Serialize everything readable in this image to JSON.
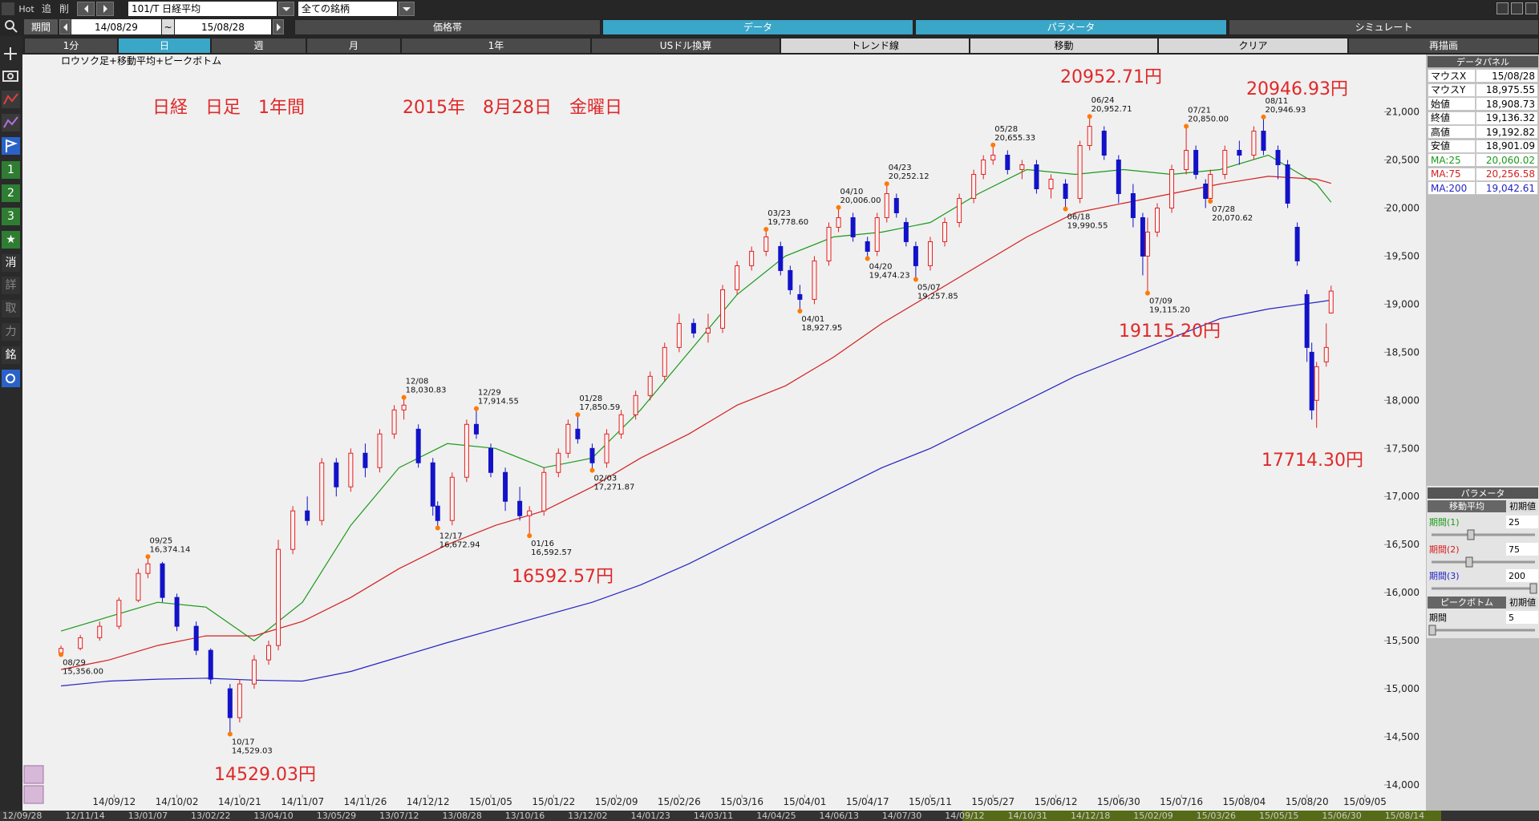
{
  "toolbar": {
    "hot": "Hot",
    "buttons": [
      "追",
      "削"
    ],
    "symbol": "101/T 日経平均",
    "universe": "全ての銘柄"
  },
  "period": {
    "label": "期間",
    "from": "14/08/29",
    "sep": "~",
    "to": "15/08/28"
  },
  "tabs": [
    "価格帯",
    "データ",
    "パラメータ",
    "シミュレート"
  ],
  "active_tabs": [
    1,
    2
  ],
  "buttons": [
    "1分",
    "日",
    "週",
    "月",
    "1年",
    "USドル換算",
    "トレンド線",
    "移動",
    "クリア",
    "再描画"
  ],
  "active_button": 1,
  "side_tools": [
    "1",
    "2",
    "3",
    "★",
    "消",
    "詳",
    "取",
    "力",
    "銘"
  ],
  "chart_data": {
    "type": "candlestick",
    "title": "ロウソク足+移動平均+ピークボトム",
    "xlim": [
      -3,
      274
    ],
    "xticks": [
      {
        "value": 11,
        "label": "14/09/12"
      },
      {
        "value": 24,
        "label": "14/10/02"
      },
      {
        "value": 37,
        "label": "14/10/21"
      },
      {
        "value": 50,
        "label": "14/11/07"
      },
      {
        "value": 63,
        "label": "14/11/26"
      },
      {
        "value": 76,
        "label": "14/12/12"
      },
      {
        "value": 89,
        "label": "15/01/05"
      },
      {
        "value": 102,
        "label": "15/01/22"
      },
      {
        "value": 115,
        "label": "15/02/09"
      },
      {
        "value": 128,
        "label": "15/02/26"
      },
      {
        "value": 141,
        "label": "15/03/16"
      },
      {
        "value": 154,
        "label": "15/04/01"
      },
      {
        "value": 167,
        "label": "15/04/17"
      },
      {
        "value": 180,
        "label": "15/05/11"
      },
      {
        "value": 193,
        "label": "15/05/27"
      },
      {
        "value": 206,
        "label": "15/06/12"
      },
      {
        "value": 219,
        "label": "15/06/30"
      },
      {
        "value": 232,
        "label": "15/07/16"
      },
      {
        "value": 245,
        "label": "15/08/04"
      },
      {
        "value": 258,
        "label": "15/08/20"
      },
      {
        "value": 270,
        "label": "15/09/05"
      }
    ],
    "ylim": [
      13900,
      21580
    ],
    "yticks": [
      {
        "value": 14000,
        "label": "14,000"
      },
      {
        "value": 14500,
        "label": "14,500"
      },
      {
        "value": 15000,
        "label": "15,000"
      },
      {
        "value": 15500,
        "label": "15,500"
      },
      {
        "value": 16000,
        "label": "16,000"
      },
      {
        "value": 16500,
        "label": "16,500"
      },
      {
        "value": 17000,
        "label": "17,000"
      },
      {
        "value": 17500,
        "label": "17,500"
      },
      {
        "value": 18000,
        "label": "18,000"
      },
      {
        "value": 18500,
        "label": "18,500"
      },
      {
        "value": 19000,
        "label": "19,000"
      },
      {
        "value": 19500,
        "label": "19,500"
      },
      {
        "value": 20000,
        "label": "20,000"
      },
      {
        "value": 20500,
        "label": "20,500"
      },
      {
        "value": 21000,
        "label": "21,000"
      }
    ],
    "candles": {
      "up_color": "#e02020",
      "down_color": "#1212c8",
      "x": [
        0,
        4,
        8,
        12,
        16,
        18,
        21,
        24,
        28,
        31,
        35,
        37,
        40,
        43,
        45,
        48,
        51,
        54,
        57,
        60,
        63,
        66,
        69,
        71,
        74,
        77,
        78,
        81,
        84,
        86,
        89,
        92,
        95,
        97,
        100,
        103,
        105,
        107,
        110,
        113,
        116,
        119,
        122,
        125,
        128,
        131,
        134,
        137,
        140,
        143,
        146,
        149,
        151,
        153,
        156,
        159,
        161,
        164,
        167,
        169,
        171,
        173,
        175,
        177,
        180,
        183,
        186,
        189,
        191,
        193,
        196,
        199,
        202,
        205,
        208,
        211,
        213,
        216,
        219,
        222,
        224,
        225,
        227,
        230,
        233,
        235,
        237,
        238,
        241,
        244,
        247,
        249,
        252,
        254,
        256,
        258,
        259,
        260,
        262,
        263
      ],
      "open": [
        15370,
        15420,
        15530,
        15650,
        15920,
        16200,
        16300,
        15950,
        15650,
        15400,
        15000,
        14700,
        15050,
        15300,
        15450,
        16450,
        16850,
        16750,
        17350,
        17100,
        17450,
        17300,
        17650,
        17900,
        17700,
        17350,
        16900,
        16750,
        17200,
        17750,
        17500,
        17250,
        16950,
        16800,
        16850,
        17250,
        17450,
        17700,
        17500,
        17350,
        17650,
        17850,
        18050,
        18250,
        18550,
        18800,
        18700,
        18750,
        19150,
        19400,
        19550,
        19600,
        19350,
        19100,
        19050,
        19450,
        19800,
        19900,
        19650,
        19550,
        19900,
        20100,
        19850,
        19600,
        19400,
        19650,
        19850,
        20100,
        20350,
        20500,
        20550,
        20400,
        20450,
        20200,
        20250,
        20100,
        20650,
        20800,
        20500,
        20150,
        19900,
        19500,
        19750,
        20000,
        20400,
        20600,
        20250,
        20100,
        20350,
        20600,
        20550,
        20800,
        20600,
        20450,
        19800,
        19100,
        18500,
        18000,
        18400,
        18908.73
      ],
      "high": [
        15450,
        15560,
        15700,
        15950,
        16250,
        16374.14,
        16320,
        15990,
        15700,
        15420,
        15050,
        15100,
        15350,
        15500,
        16550,
        16900,
        17000,
        17400,
        17400,
        17500,
        17550,
        17700,
        17950,
        18030.83,
        17750,
        17400,
        16950,
        17250,
        17800,
        17914.55,
        17550,
        17300,
        17100,
        16900,
        17300,
        17500,
        17800,
        17850.59,
        17550,
        17700,
        17900,
        18100,
        18300,
        18600,
        18900,
        18850,
        18900,
        19200,
        19450,
        19600,
        19778.6,
        19650,
        19400,
        19200,
        19500,
        19850,
        20006,
        19950,
        19700,
        19950,
        20252.12,
        20150,
        19900,
        19650,
        19700,
        19900,
        20150,
        20400,
        20550,
        20655.33,
        20600,
        20500,
        20500,
        20350,
        20300,
        20700,
        20952.71,
        20850,
        20550,
        20250,
        19950,
        19900,
        20050,
        20450,
        20850,
        20650,
        20300,
        20400,
        20650,
        20700,
        20850,
        20946.93,
        20650,
        20500,
        19850,
        19150,
        18600,
        18400,
        18800,
        19192.82
      ],
      "low": [
        15356,
        15400,
        15500,
        15620,
        15900,
        16150,
        15900,
        15600,
        15350,
        15050,
        14529.03,
        14650,
        15000,
        15250,
        15400,
        16400,
        16700,
        16700,
        17000,
        17050,
        17200,
        17250,
        17600,
        17800,
        17300,
        16800,
        16672.94,
        16700,
        17150,
        17600,
        17200,
        16850,
        16750,
        16592.57,
        16800,
        17200,
        17400,
        17550,
        17271.87,
        17300,
        17600,
        17800,
        18000,
        18200,
        18500,
        18650,
        18600,
        18700,
        19100,
        19350,
        19500,
        19300,
        19100,
        18927.95,
        19000,
        19400,
        19750,
        19650,
        19474.23,
        19500,
        19850,
        19900,
        19600,
        19257.85,
        19350,
        19600,
        19800,
        20050,
        20300,
        20450,
        20350,
        20300,
        20150,
        20100,
        19990.55,
        20050,
        20600,
        20500,
        20050,
        19800,
        19300,
        19115.2,
        19700,
        19950,
        20350,
        20300,
        20000,
        20070.62,
        20300,
        20450,
        20500,
        20550,
        20300,
        20000,
        19400,
        18400,
        17800,
        17714.3,
        18350,
        18901.09
      ],
      "close": [
        15420,
        15530,
        15650,
        15920,
        16200,
        16300,
        15950,
        15650,
        15400,
        15100,
        14700,
        15050,
        15300,
        15450,
        16450,
        16850,
        16750,
        17350,
        17100,
        17450,
        17300,
        17650,
        17900,
        17950,
        17350,
        16900,
        16750,
        17200,
        17750,
        17650,
        17250,
        16950,
        16800,
        16850,
        17250,
        17450,
        17750,
        17600,
        17350,
        17650,
        17850,
        18050,
        18250,
        18550,
        18800,
        18700,
        18750,
        19150,
        19400,
        19550,
        19700,
        19350,
        19150,
        19050,
        19450,
        19800,
        19900,
        19700,
        19550,
        19900,
        20150,
        19950,
        19650,
        19400,
        19650,
        19850,
        20100,
        20350,
        20500,
        20550,
        20400,
        20450,
        20200,
        20300,
        20100,
        20650,
        20850,
        20550,
        20150,
        19900,
        19500,
        19750,
        20000,
        20400,
        20600,
        20350,
        20100,
        20350,
        20600,
        20550,
        20800,
        20600,
        20450,
        20050,
        19450,
        18550,
        17900,
        18350,
        18550,
        19136.32
      ]
    },
    "x": [
      0,
      10,
      20,
      30,
      40,
      50,
      60,
      70,
      80,
      90,
      100,
      110,
      120,
      130,
      140,
      150,
      160,
      170,
      180,
      190,
      200,
      210,
      220,
      230,
      240,
      250,
      260,
      263
    ],
    "series": [
      {
        "color": "#1a9a1a",
        "values": [
          15600,
          15750,
          15900,
          15850,
          15500,
          15900,
          16700,
          17300,
          17550,
          17500,
          17300,
          17400,
          17900,
          18500,
          19100,
          19500,
          19700,
          19750,
          19850,
          20150,
          20400,
          20350,
          20400,
          20350,
          20400,
          20550,
          20250,
          20060.02
        ]
      },
      {
        "color": "#d42020",
        "values": [
          15200,
          15300,
          15450,
          15550,
          15550,
          15700,
          15950,
          16250,
          16500,
          16700,
          16850,
          17100,
          17400,
          17650,
          17950,
          18150,
          18450,
          18800,
          19100,
          19400,
          19700,
          19950,
          20050,
          20150,
          20250,
          20330,
          20300,
          20256.58
        ]
      },
      {
        "color": "#2424c4",
        "values": [
          15030,
          15080,
          15100,
          15110,
          15090,
          15080,
          15180,
          15330,
          15480,
          15620,
          15760,
          15900,
          16080,
          16300,
          16550,
          16800,
          17050,
          17300,
          17500,
          17750,
          18000,
          18250,
          18450,
          18650,
          18850,
          18950,
          19020,
          19042.61
        ]
      }
    ],
    "annotations": [
      {
        "x": 0,
        "value": 15356,
        "date": "08/29",
        "label": "15,356.00",
        "position": "below"
      },
      {
        "x": 18,
        "value": 16374.14,
        "date": "09/25",
        "label": "16,374.14",
        "position": "above"
      },
      {
        "x": 35,
        "value": 14529.03,
        "date": "10/17",
        "label": "14,529.03",
        "position": "below"
      },
      {
        "x": 71,
        "value": 18030.83,
        "date": "12/08",
        "label": "18,030.83",
        "position": "above"
      },
      {
        "x": 78,
        "value": 16672.94,
        "date": "12/17",
        "label": "16,672.94",
        "position": "below"
      },
      {
        "x": 86,
        "value": 17914.55,
        "date": "12/29",
        "label": "17,914.55",
        "position": "above"
      },
      {
        "x": 97,
        "value": 16592.57,
        "date": "01/16",
        "label": "16,592.57",
        "position": "below"
      },
      {
        "x": 107,
        "value": 17850.59,
        "date": "01/28",
        "label": "17,850.59",
        "position": "above"
      },
      {
        "x": 110,
        "value": 17271.87,
        "date": "02/03",
        "label": "17,271.87",
        "position": "below"
      },
      {
        "x": 146,
        "value": 19778.6,
        "date": "03/23",
        "label": "19,778.60",
        "position": "above"
      },
      {
        "x": 153,
        "value": 18927.95,
        "date": "04/01",
        "label": "18,927.95",
        "position": "below"
      },
      {
        "x": 161,
        "value": 20006,
        "date": "04/10",
        "label": "20,006.00",
        "position": "above"
      },
      {
        "x": 167,
        "value": 19474.23,
        "date": "04/20",
        "label": "19,474.23",
        "position": "below"
      },
      {
        "x": 171,
        "value": 20252.12,
        "date": "04/23",
        "label": "20,252.12",
        "position": "above"
      },
      {
        "x": 177,
        "value": 19257.85,
        "date": "05/07",
        "label": "19,257.85",
        "position": "below"
      },
      {
        "x": 193,
        "value": 20655.33,
        "date": "05/28",
        "label": "20,655.33",
        "position": "above"
      },
      {
        "x": 208,
        "value": 19990.55,
        "date": "06/18",
        "label": "19,990.55",
        "position": "below"
      },
      {
        "x": 213,
        "value": 20952.71,
        "date": "06/24",
        "label": "20,952.71",
        "position": "above"
      },
      {
        "x": 225,
        "value": 19115.2,
        "date": "07/09",
        "label": "19,115.20",
        "position": "below"
      },
      {
        "x": 233,
        "value": 20850,
        "date": "07/21",
        "label": "20,850.00",
        "position": "above"
      },
      {
        "x": 238,
        "value": 20070.62,
        "date": "07/28",
        "label": "20,070.62",
        "position": "below"
      },
      {
        "x": 249,
        "value": 20946.93,
        "date": "08/11",
        "label": "20,946.93",
        "position": "above"
      }
    ],
    "notes": [
      "日経　日足　1年間",
      "2015年　8月28日　金曜日",
      "20952.71円",
      "20946.93円",
      "19115.20円",
      "17714.30円",
      "16592.57円",
      "14529.03円"
    ]
  },
  "data_panel": {
    "title": "データパネル",
    "rows": [
      [
        "マウスX",
        "15/08/28"
      ],
      [
        "マウスY",
        "18,975.55"
      ],
      [
        "始値",
        "18,908.73"
      ],
      [
        "終値",
        "19,136.32"
      ],
      [
        "高値",
        "19,192.82"
      ],
      [
        "安値",
        "18,901.09"
      ],
      [
        "MA:25",
        "20,060.02"
      ],
      [
        "MA:75",
        "20,256.58"
      ],
      [
        "MA:200",
        "19,042.61"
      ]
    ]
  },
  "param_panel": {
    "title": "パラメータ",
    "ma_header": "移動平均",
    "reset": "初期値",
    "ma": [
      {
        "label": "期間(1)",
        "value": 25
      },
      {
        "label": "期間(2)",
        "value": 75
      },
      {
        "label": "期間(3)",
        "value": 200
      }
    ],
    "pb_header": "ピークボトム",
    "pb": {
      "label": "期間",
      "value": 5
    }
  },
  "timeline": [
    "12/09/28",
    "12/11/14",
    "13/01/07",
    "13/02/22",
    "13/04/10",
    "13/05/29",
    "13/07/12",
    "13/08/28",
    "13/10/16",
    "13/12/02",
    "14/01/23",
    "14/03/11",
    "14/04/25",
    "14/06/13",
    "14/07/30",
    "14/09/12",
    "14/10/31",
    "14/12/18",
    "15/02/09",
    "15/03/26",
    "15/05/15",
    "15/06/30",
    "15/08/14"
  ]
}
